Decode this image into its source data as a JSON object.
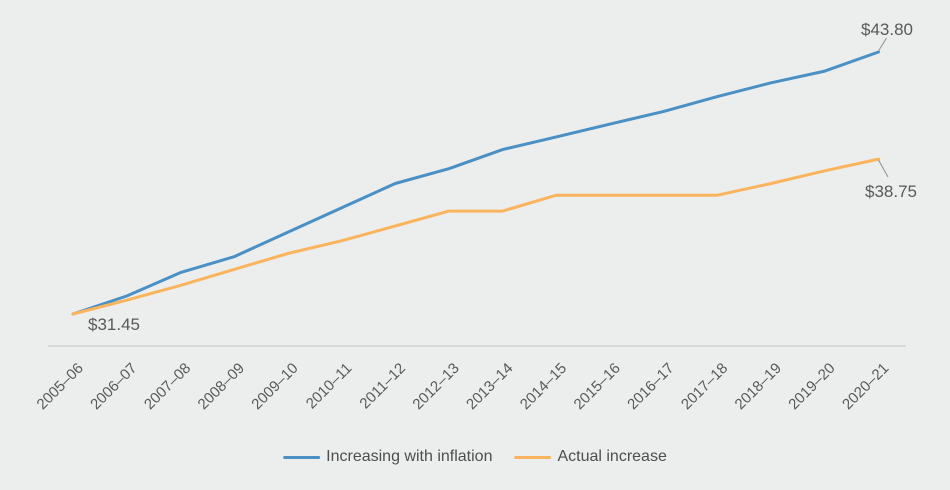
{
  "chart_data": {
    "type": "line",
    "title": "",
    "xlabel": "",
    "ylabel": "",
    "grid": false,
    "legend_position": "bottom",
    "ylim": [
      31.45,
      43.8
    ],
    "categories": [
      "2005–06",
      "2006–07",
      "2007–08",
      "2008–09",
      "2009–10",
      "2010–11",
      "2011–12",
      "2012–13",
      "2013–14",
      "2014–15",
      "2015–16",
      "2016–17",
      "2017–18",
      "2018–19",
      "2019–20",
      "2020–21"
    ],
    "series": [
      {
        "name": "Increasing with inflation",
        "color": "#4A90C4",
        "values": [
          31.45,
          32.3,
          33.4,
          34.15,
          35.3,
          36.45,
          37.6,
          38.3,
          39.2,
          39.8,
          40.4,
          41.0,
          41.7,
          42.35,
          42.9,
          43.8
        ]
      },
      {
        "name": "Actual increase",
        "color": "#FAB45E",
        "values": [
          31.45,
          32.1,
          32.8,
          33.55,
          34.3,
          34.9,
          35.6,
          36.3,
          36.3,
          37.05,
          37.05,
          37.05,
          37.05,
          37.6,
          38.2,
          38.75
        ]
      }
    ],
    "annotations": {
      "start": "$31.45",
      "inflation_end": "$43.80",
      "actual_end": "$38.75"
    }
  },
  "colors": {
    "background": "#ECEDED",
    "axis_line": "#C9CACA",
    "tick_text": "#595959",
    "annotation_text": "#595959",
    "legend_text": "#4E4E4E",
    "leader_line": "#8F8F8F"
  }
}
